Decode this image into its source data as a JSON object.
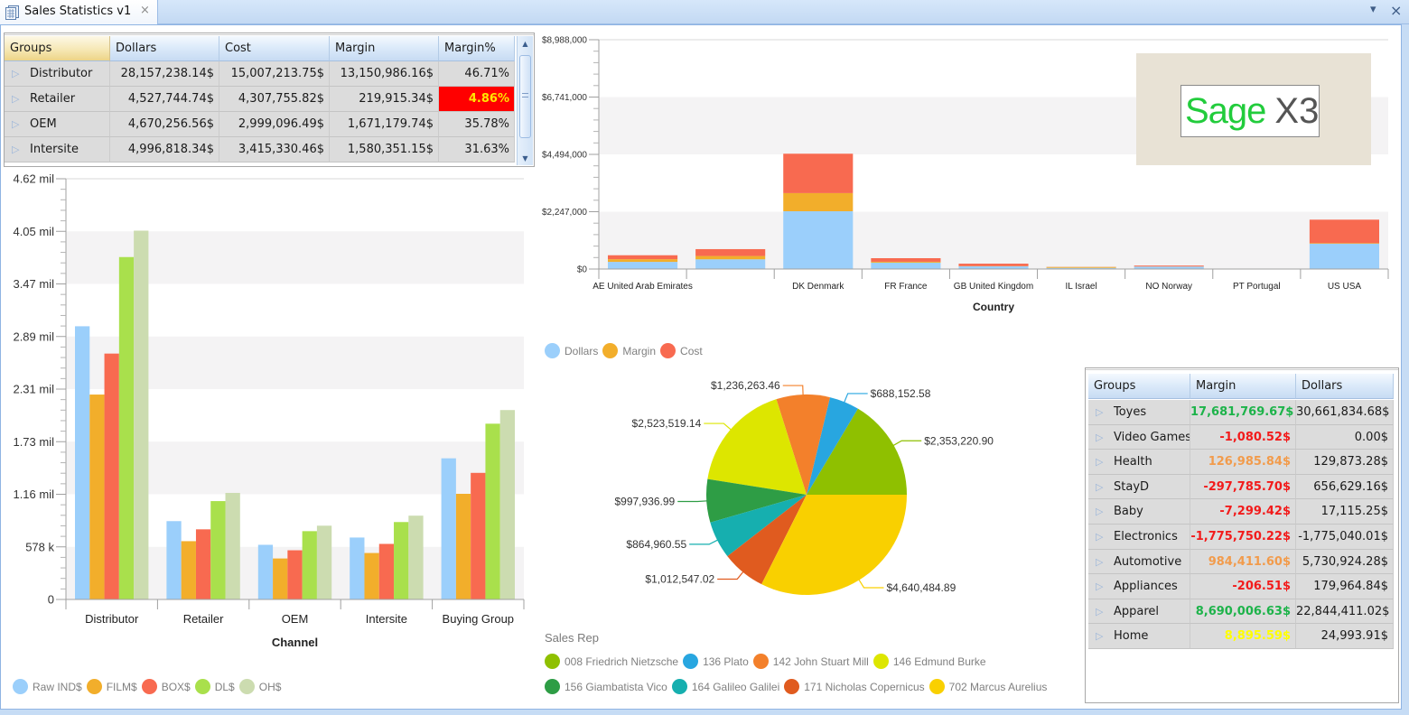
{
  "window": {
    "tab_title": "Sales Statistics v1",
    "tab_close_glyph": "×",
    "dropdown_glyph": "▾",
    "close_glyph": "×"
  },
  "branding": {
    "logo_name": "Sage",
    "logo_suffix": "X3"
  },
  "status_colors": {
    "positive": "#1DB34A",
    "negative": "#F21B1B",
    "warning": "#F29B4B",
    "low": "#FFFF00",
    "alert_background": "#FF0000",
    "alert_text": "#FFE600"
  },
  "channel_grid": {
    "expand_glyph": "▷",
    "columns": {
      "groups": "Groups",
      "dollars": "Dollars",
      "cost": "Cost",
      "margin": "Margin",
      "margin_pct": "Margin%"
    },
    "sorted_column": "groups",
    "rows": [
      {
        "group": "Distributor",
        "dollars": "28,157,238.14$",
        "cost": "15,007,213.75$",
        "margin": "13,150,986.16$",
        "margin_pct": "46.71%",
        "status": "normal"
      },
      {
        "group": "Retailer",
        "dollars": "4,527,744.74$",
        "cost": "4,307,755.82$",
        "margin": "219,915.34$",
        "margin_pct": "4.86%",
        "status": "alert"
      },
      {
        "group": "OEM",
        "dollars": "4,670,256.56$",
        "cost": "2,999,096.49$",
        "margin": "1,671,179.74$",
        "margin_pct": "35.78%",
        "status": "normal"
      },
      {
        "group": "Intersite",
        "dollars": "4,996,818.34$",
        "cost": "3,415,330.46$",
        "margin": "1,580,351.15$",
        "margin_pct": "31.63%",
        "status": "normal"
      }
    ],
    "scroll": {
      "up_glyph": "▲",
      "down_glyph": "▼"
    }
  },
  "category_grid": {
    "expand_glyph": "▷",
    "columns": {
      "groups": "Groups",
      "margin": "Margin",
      "dollars": "Dollars"
    },
    "rows": [
      {
        "group": "Toyes",
        "margin": "17,681,769.67$",
        "dollars": "30,661,834.68$",
        "status": "positive"
      },
      {
        "group": "Video Games",
        "margin": "-1,080.52$",
        "dollars": "0.00$",
        "status": "negative"
      },
      {
        "group": "Health",
        "margin": "126,985.84$",
        "dollars": "129,873.28$",
        "status": "warning"
      },
      {
        "group": "StayD",
        "margin": "-297,785.70$",
        "dollars": "656,629.16$",
        "status": "negative"
      },
      {
        "group": "Baby",
        "margin": "-7,299.42$",
        "dollars": "17,115.25$",
        "status": "negative"
      },
      {
        "group": "Electronics",
        "margin": "-1,775,750.22$",
        "dollars": "-1,775,040.01$",
        "status": "negative"
      },
      {
        "group": "Automotive",
        "margin": "984,411.60$",
        "dollars": "5,730,924.28$",
        "status": "warning"
      },
      {
        "group": "Appliances",
        "margin": "-206.51$",
        "dollars": "179,964.84$",
        "status": "negative"
      },
      {
        "group": "Apparel",
        "margin": "8,690,006.63$",
        "dollars": "22,844,411.02$",
        "status": "positive"
      },
      {
        "group": "Home",
        "margin": "8,895.59$",
        "dollars": "24,993.91$",
        "status": "low"
      }
    ]
  },
  "chart_data": [
    {
      "id": "sales-by-channel",
      "type": "bar",
      "title": "",
      "xlabel": "Channel",
      "ylabel": "",
      "value_unit": "million $",
      "categories": [
        "Distributor",
        "Retailer",
        "OEM",
        "Intersite",
        "Buying Group"
      ],
      "series": [
        {
          "name": "Raw IND$",
          "color": "#9BCFFB",
          "values": [
            3.0,
            0.86,
            0.6,
            0.68,
            1.55
          ]
        },
        {
          "name": "FILM$",
          "color": "#F2AE2B",
          "values": [
            2.25,
            0.64,
            0.45,
            0.51,
            1.16
          ]
        },
        {
          "name": "BOX$",
          "color": "#F86A50",
          "values": [
            2.7,
            0.77,
            0.54,
            0.61,
            1.39
          ]
        },
        {
          "name": "DL$",
          "color": "#A9E04C",
          "values": [
            3.76,
            1.08,
            0.75,
            0.85,
            1.93
          ]
        },
        {
          "name": "OH$",
          "color": "#CCDCB0",
          "values": [
            4.05,
            1.17,
            0.81,
            0.92,
            2.08
          ]
        }
      ],
      "ylim": [
        0,
        4.62
      ],
      "y_ticks": [
        {
          "value": 0,
          "label": "0"
        },
        {
          "value": 0.5775,
          "label": "578 k"
        },
        {
          "value": 1.155,
          "label": "1.16 mil"
        },
        {
          "value": 1.7325,
          "label": "1.73 mil"
        },
        {
          "value": 2.31,
          "label": "2.31 mil"
        },
        {
          "value": 2.8875,
          "label": "2.89 mil"
        },
        {
          "value": 3.465,
          "label": "3.47 mil"
        },
        {
          "value": 4.0425,
          "label": "4.05 mil"
        },
        {
          "value": 4.62,
          "label": "4.62 mil"
        }
      ],
      "grid": "alternating horizontal bands",
      "legend": "bottom-left"
    },
    {
      "id": "sales-by-country",
      "type": "bar",
      "stacked": true,
      "title": "",
      "xlabel": "Country",
      "ylabel": "",
      "categories": [
        "AE United Arab Emirates",
        "",
        "DK Denmark",
        "FR France",
        "GB United Kingdom",
        "IL Israel",
        "NO Norway",
        "PT Portugal",
        "US USA"
      ],
      "series": [
        {
          "name": "Dollars",
          "color": "#9BCFFB",
          "values": [
            280000,
            380000,
            2265000,
            250000,
            105000,
            45000,
            95000,
            0,
            990000
          ]
        },
        {
          "name": "Margin",
          "color": "#F2AE2B",
          "values": [
            105000,
            130000,
            710000,
            35000,
            10000,
            35000,
            5000,
            0,
            25000
          ]
        },
        {
          "name": "Cost",
          "color": "#F86A50",
          "values": [
            155000,
            270000,
            1545000,
            140000,
            95000,
            5000,
            35000,
            0,
            920000
          ]
        }
      ],
      "ylim": [
        0,
        8988000
      ],
      "y_ticks": [
        {
          "value": 0,
          "label": "$0"
        },
        {
          "value": 2247000,
          "label": "$2,247,000"
        },
        {
          "value": 4494000,
          "label": "$4,494,000"
        },
        {
          "value": 6741000,
          "label": "$6,741,000"
        },
        {
          "value": 8988000,
          "label": "$8,988,000"
        }
      ],
      "grid": "alternating horizontal bands",
      "legend": "below-left"
    },
    {
      "id": "sales-by-rep",
      "type": "pie",
      "title": "",
      "legend_title": "Sales Rep",
      "direction": "counter-clockwise from 3 o'clock",
      "slices": [
        {
          "label": "008 Friedrich Nietzsche",
          "value": 2353220.9,
          "value_label": "$2,353,220.90",
          "color": "#8FC000"
        },
        {
          "label": "136 Plato",
          "value": 688152.58,
          "value_label": "$688,152.58",
          "color": "#28A6E0"
        },
        {
          "label": "142 John Stuart Mill",
          "value": 1236263.46,
          "value_label": "$1,236,263.46",
          "color": "#F3802B"
        },
        {
          "label": "146 Edmund Burke",
          "value": 2523519.14,
          "value_label": "$2,523,519.14",
          "color": "#DDE600"
        },
        {
          "label": "156 Giambatista Vico",
          "value": 997936.99,
          "value_label": "$997,936.99",
          "color": "#2E9D45"
        },
        {
          "label": "164 Galileo Galilei",
          "value": 864960.55,
          "value_label": "$864,960.55",
          "color": "#16AFAF"
        },
        {
          "label": "171 Nicholas Copernicus",
          "value": 1012547.02,
          "value_label": "$1,012,547.02",
          "color": "#E05B1F"
        },
        {
          "label": "702 Marcus Aurelius",
          "value": 4640484.89,
          "value_label": "$4,640,484.89",
          "color": "#F9D000"
        }
      ],
      "legend": "bottom-left"
    }
  ]
}
